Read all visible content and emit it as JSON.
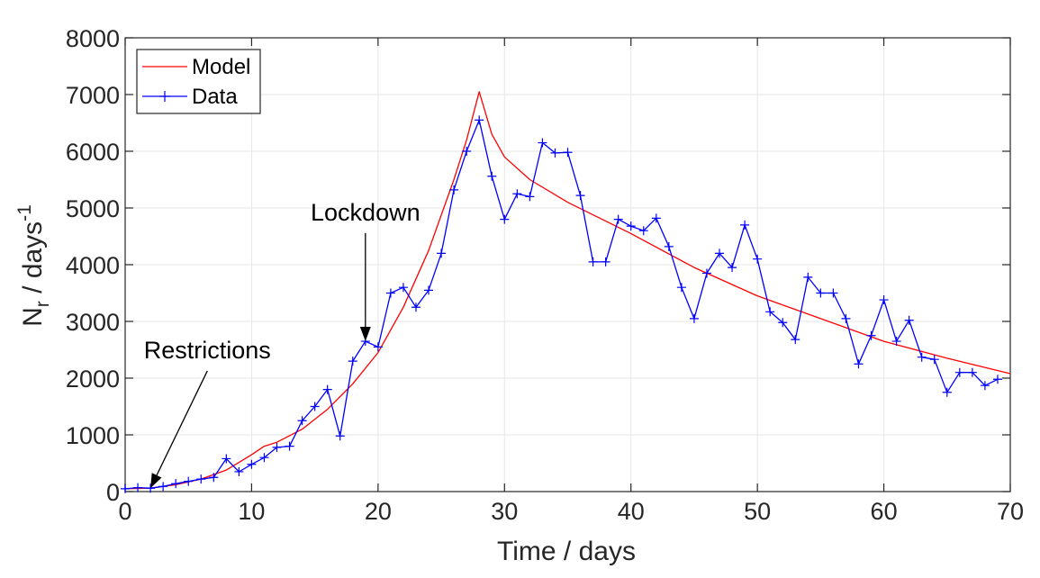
{
  "chart_data": {
    "type": "line",
    "xlabel": "Time / days",
    "ylabel_main": "N",
    "ylabel_sub": "r",
    "ylabel_rest": " / days",
    "ylabel_sup": "-1",
    "xlim": [
      0,
      70
    ],
    "ylim": [
      0,
      8000
    ],
    "xticks": [
      0,
      10,
      20,
      30,
      40,
      50,
      60,
      70
    ],
    "yticks": [
      0,
      1000,
      2000,
      3000,
      4000,
      5000,
      6000,
      7000,
      8000
    ],
    "grid": true,
    "legend_position": "top-left",
    "series": [
      {
        "name": "Model",
        "color": "#ff0000",
        "marker": "none",
        "x": [
          0,
          2,
          4,
          6,
          8,
          10,
          11,
          12,
          14,
          16,
          18,
          20,
          22,
          24,
          26,
          27,
          28,
          29,
          30,
          32,
          35,
          40,
          45,
          50,
          55,
          60,
          65,
          70
        ],
        "y": [
          50,
          60,
          120,
          220,
          380,
          650,
          800,
          870,
          1100,
          1450,
          1900,
          2450,
          3250,
          4250,
          5500,
          6200,
          7050,
          6300,
          5900,
          5500,
          5100,
          4550,
          3950,
          3450,
          3050,
          2650,
          2350,
          2080
        ]
      },
      {
        "name": "Data",
        "color": "#0000ff",
        "marker": "+",
        "x": [
          0,
          1,
          2,
          3,
          4,
          5,
          6,
          7,
          8,
          9,
          10,
          11,
          12,
          13,
          14,
          15,
          16,
          17,
          18,
          19,
          20,
          21,
          22,
          23,
          24,
          25,
          26,
          27,
          28,
          29,
          30,
          31,
          32,
          33,
          34,
          35,
          36,
          37,
          38,
          39,
          40,
          41,
          42,
          43,
          44,
          45,
          46,
          47,
          48,
          49,
          50,
          51,
          52,
          53,
          54,
          55,
          56,
          57,
          58,
          59,
          60,
          61,
          62,
          63,
          64,
          65,
          66,
          67,
          68,
          69
        ],
        "y": [
          50,
          70,
          60,
          90,
          140,
          180,
          220,
          250,
          580,
          350,
          480,
          600,
          780,
          800,
          1250,
          1500,
          1800,
          980,
          2300,
          2650,
          2550,
          3500,
          3600,
          3250,
          3550,
          4200,
          5320,
          6000,
          6550,
          5560,
          4800,
          5250,
          5200,
          6150,
          5970,
          5980,
          5220,
          4050,
          4050,
          4800,
          4680,
          4600,
          4820,
          4320,
          3600,
          3050,
          3850,
          4200,
          3950,
          4700,
          4100,
          3170,
          2980,
          2680,
          3780,
          3500,
          3500,
          3050,
          2250,
          2750,
          3380,
          2650,
          3020,
          2370,
          2330,
          1750,
          2100,
          2100,
          1870,
          1980
        ]
      }
    ],
    "annotations": [
      {
        "text": "Lockdown",
        "target_x": 19,
        "target_y": 2650,
        "label_x": 19,
        "label_y": 4780
      },
      {
        "text": "Restrictions",
        "target_x": 2,
        "target_y": 60,
        "label_x": 6.5,
        "label_y": 2350
      }
    ]
  }
}
